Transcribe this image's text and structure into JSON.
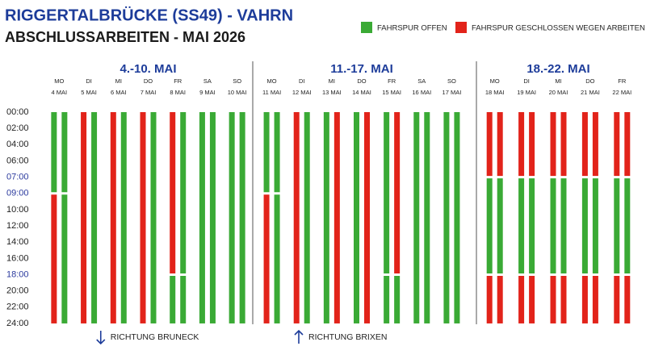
{
  "header": {
    "title": "RIGGERTALBRÜCKE (SS49) - VAHRN",
    "subtitle": "ABSCHLUSSARBEITEN - MAI 2026"
  },
  "legend": [
    {
      "label": "FAHRSPUR OFFEN",
      "color": "#3aaa35"
    },
    {
      "label": "FAHRSPUR GESCHLOSSEN WEGEN ARBEITEN",
      "color": "#e2231a"
    }
  ],
  "time_axis": {
    "ticks": [
      {
        "value": 0,
        "label": "00:00",
        "color": "#222222"
      },
      {
        "value": 2,
        "label": "02:00",
        "color": "#222222"
      },
      {
        "value": 4,
        "label": "04:00",
        "color": "#222222"
      },
      {
        "value": 6,
        "label": "06:00",
        "color": "#222222"
      },
      {
        "value": 7,
        "label": "07:00",
        "color": "#2b3a9e"
      },
      {
        "value": 9,
        "label": "09:00",
        "color": "#2b3a9e"
      },
      {
        "value": 10,
        "label": "10:00",
        "color": "#222222"
      },
      {
        "value": 12,
        "label": "12:00",
        "color": "#222222"
      },
      {
        "value": 14,
        "label": "14:00",
        "color": "#222222"
      },
      {
        "value": 16,
        "label": "16:00",
        "color": "#222222"
      },
      {
        "value": 18,
        "label": "18:00",
        "color": "#2b3a9e"
      },
      {
        "value": 20,
        "label": "20:00",
        "color": "#222222"
      },
      {
        "value": 22,
        "label": "22:00",
        "color": "#222222"
      },
      {
        "value": 24,
        "label": "24:00",
        "color": "#222222"
      }
    ]
  },
  "weeks": [
    {
      "title": "4.-10. MAI",
      "direction": "RICHTUNG BRUNECK",
      "days": [
        {
          "day": "MO",
          "date": "4 MAI",
          "lanes": [
            [
              {
                "start": 0,
                "end": 9,
                "color": "#3aaa35"
              },
              {
                "start": 9,
                "end": 24,
                "color": "#e2231a"
              }
            ],
            [
              {
                "start": 0,
                "end": 9,
                "color": "#3aaa35"
              },
              {
                "start": 9,
                "end": 24,
                "color": "#3aaa35"
              }
            ]
          ]
        },
        {
          "day": "DI",
          "date": "5 MAI",
          "lanes": [
            [
              {
                "start": 0,
                "end": 24,
                "color": "#e2231a"
              }
            ],
            [
              {
                "start": 0,
                "end": 24,
                "color": "#3aaa35"
              }
            ]
          ]
        },
        {
          "day": "MI",
          "date": "6 MAI",
          "lanes": [
            [
              {
                "start": 0,
                "end": 24,
                "color": "#e2231a"
              }
            ],
            [
              {
                "start": 0,
                "end": 24,
                "color": "#3aaa35"
              }
            ]
          ]
        },
        {
          "day": "DO",
          "date": "7 MAI",
          "lanes": [
            [
              {
                "start": 0,
                "end": 24,
                "color": "#e2231a"
              }
            ],
            [
              {
                "start": 0,
                "end": 24,
                "color": "#3aaa35"
              }
            ]
          ]
        },
        {
          "day": "FR",
          "date": "8 MAI",
          "lanes": [
            [
              {
                "start": 0,
                "end": 18,
                "color": "#e2231a"
              },
              {
                "start": 18,
                "end": 24,
                "color": "#3aaa35"
              }
            ],
            [
              {
                "start": 0,
                "end": 18,
                "color": "#3aaa35"
              },
              {
                "start": 18,
                "end": 24,
                "color": "#3aaa35"
              }
            ]
          ]
        },
        {
          "day": "SA",
          "date": "9 MAI",
          "lanes": [
            [
              {
                "start": 0,
                "end": 24,
                "color": "#3aaa35"
              }
            ],
            [
              {
                "start": 0,
                "end": 24,
                "color": "#3aaa35"
              }
            ]
          ]
        },
        {
          "day": "SO",
          "date": "10 MAI",
          "lanes": [
            [
              {
                "start": 0,
                "end": 24,
                "color": "#3aaa35"
              }
            ],
            [
              {
                "start": 0,
                "end": 24,
                "color": "#3aaa35"
              }
            ]
          ]
        }
      ]
    },
    {
      "title": "11.-17. MAI",
      "direction": "RICHTUNG BRIXEN",
      "days": [
        {
          "day": "MO",
          "date": "11 MAI",
          "lanes": [
            [
              {
                "start": 0,
                "end": 9,
                "color": "#3aaa35"
              },
              {
                "start": 9,
                "end": 24,
                "color": "#e2231a"
              }
            ],
            [
              {
                "start": 0,
                "end": 9,
                "color": "#3aaa35"
              },
              {
                "start": 9,
                "end": 24,
                "color": "#3aaa35"
              }
            ]
          ]
        },
        {
          "day": "DI",
          "date": "12 MAI",
          "lanes": [
            [
              {
                "start": 0,
                "end": 24,
                "color": "#e2231a"
              }
            ],
            [
              {
                "start": 0,
                "end": 24,
                "color": "#3aaa35"
              }
            ]
          ]
        },
        {
          "day": "MI",
          "date": "13 MAI",
          "lanes": [
            [
              {
                "start": 0,
                "end": 24,
                "color": "#3aaa35"
              }
            ],
            [
              {
                "start": 0,
                "end": 24,
                "color": "#e2231a"
              }
            ]
          ]
        },
        {
          "day": "DO",
          "date": "14 MAI",
          "lanes": [
            [
              {
                "start": 0,
                "end": 24,
                "color": "#3aaa35"
              }
            ],
            [
              {
                "start": 0,
                "end": 24,
                "color": "#e2231a"
              }
            ]
          ]
        },
        {
          "day": "FR",
          "date": "15 MAI",
          "lanes": [
            [
              {
                "start": 0,
                "end": 18,
                "color": "#3aaa35"
              },
              {
                "start": 18,
                "end": 24,
                "color": "#3aaa35"
              }
            ],
            [
              {
                "start": 0,
                "end": 18,
                "color": "#e2231a"
              },
              {
                "start": 18,
                "end": 24,
                "color": "#3aaa35"
              }
            ]
          ]
        },
        {
          "day": "SA",
          "date": "16 MAI",
          "lanes": [
            [
              {
                "start": 0,
                "end": 24,
                "color": "#3aaa35"
              }
            ],
            [
              {
                "start": 0,
                "end": 24,
                "color": "#3aaa35"
              }
            ]
          ]
        },
        {
          "day": "SO",
          "date": "17 MAI",
          "lanes": [
            [
              {
                "start": 0,
                "end": 24,
                "color": "#3aaa35"
              }
            ],
            [
              {
                "start": 0,
                "end": 24,
                "color": "#3aaa35"
              }
            ]
          ]
        }
      ]
    },
    {
      "title": "18.-22. MAI",
      "days": [
        {
          "day": "MO",
          "date": "18 MAI",
          "lanes": [
            [
              {
                "start": 0,
                "end": 7,
                "color": "#e2231a"
              },
              {
                "start": 7,
                "end": 18,
                "color": "#3aaa35"
              },
              {
                "start": 18,
                "end": 24,
                "color": "#e2231a"
              }
            ],
            [
              {
                "start": 0,
                "end": 7,
                "color": "#e2231a"
              },
              {
                "start": 7,
                "end": 18,
                "color": "#3aaa35"
              },
              {
                "start": 18,
                "end": 24,
                "color": "#e2231a"
              }
            ]
          ]
        },
        {
          "day": "DI",
          "date": "19 MAI",
          "lanes": [
            [
              {
                "start": 0,
                "end": 7,
                "color": "#e2231a"
              },
              {
                "start": 7,
                "end": 18,
                "color": "#3aaa35"
              },
              {
                "start": 18,
                "end": 24,
                "color": "#e2231a"
              }
            ],
            [
              {
                "start": 0,
                "end": 7,
                "color": "#e2231a"
              },
              {
                "start": 7,
                "end": 18,
                "color": "#3aaa35"
              },
              {
                "start": 18,
                "end": 24,
                "color": "#e2231a"
              }
            ]
          ]
        },
        {
          "day": "MI",
          "date": "20 MAI",
          "lanes": [
            [
              {
                "start": 0,
                "end": 7,
                "color": "#e2231a"
              },
              {
                "start": 7,
                "end": 18,
                "color": "#3aaa35"
              },
              {
                "start": 18,
                "end": 24,
                "color": "#e2231a"
              }
            ],
            [
              {
                "start": 0,
                "end": 7,
                "color": "#e2231a"
              },
              {
                "start": 7,
                "end": 18,
                "color": "#3aaa35"
              },
              {
                "start": 18,
                "end": 24,
                "color": "#e2231a"
              }
            ]
          ]
        },
        {
          "day": "DO",
          "date": "21 MAI",
          "lanes": [
            [
              {
                "start": 0,
                "end": 7,
                "color": "#e2231a"
              },
              {
                "start": 7,
                "end": 18,
                "color": "#3aaa35"
              },
              {
                "start": 18,
                "end": 24,
                "color": "#e2231a"
              }
            ],
            [
              {
                "start": 0,
                "end": 7,
                "color": "#e2231a"
              },
              {
                "start": 7,
                "end": 18,
                "color": "#3aaa35"
              },
              {
                "start": 18,
                "end": 24,
                "color": "#e2231a"
              }
            ]
          ]
        },
        {
          "day": "FR",
          "date": "22 MAI",
          "lanes": [
            [
              {
                "start": 0,
                "end": 7,
                "color": "#e2231a"
              },
              {
                "start": 7,
                "end": 18,
                "color": "#3aaa35"
              },
              {
                "start": 18,
                "end": 24,
                "color": "#e2231a"
              }
            ],
            [
              {
                "start": 0,
                "end": 7,
                "color": "#e2231a"
              },
              {
                "start": 7,
                "end": 18,
                "color": "#3aaa35"
              },
              {
                "start": 18,
                "end": 24,
                "color": "#e2231a"
              }
            ]
          ]
        }
      ]
    }
  ]
}
